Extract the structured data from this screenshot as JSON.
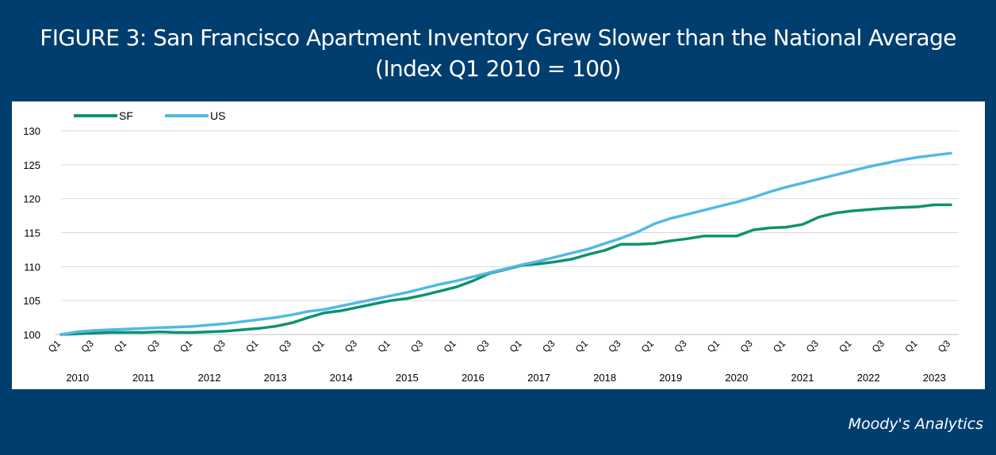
{
  "title": {
    "line1": "FIGURE 3: San Francisco Apartment Inventory Grew Slower than the National Average",
    "line2": "(Index Q1 2010 = 100)"
  },
  "source": "Moody's Analytics",
  "colors": {
    "background": "#003E70",
    "SF": "#0E9270",
    "US": "#53B8E4"
  },
  "chart_data": {
    "type": "line",
    "ylim": [
      100,
      130
    ],
    "yticks": [
      100,
      105,
      110,
      115,
      120,
      125,
      130
    ],
    "grid": true,
    "legend_position": "top-left",
    "quarter_labels": [
      "Q1",
      "Q3",
      "Q1",
      "Q3",
      "Q1",
      "Q3",
      "Q1",
      "Q3",
      "Q1",
      "Q3",
      "Q1",
      "Q3",
      "Q1",
      "Q3",
      "Q1",
      "Q3",
      "Q1",
      "Q3",
      "Q1",
      "Q3",
      "Q1",
      "Q3",
      "Q1",
      "Q3",
      "Q1",
      "Q3",
      "Q1",
      "Q3"
    ],
    "years": [
      "2010",
      "2011",
      "2012",
      "2013",
      "2014",
      "2015",
      "2016",
      "2017",
      "2018",
      "2019",
      "2020",
      "2021",
      "2022",
      "2023"
    ],
    "x": [
      "2010Q1",
      "2010Q2",
      "2010Q3",
      "2010Q4",
      "2011Q1",
      "2011Q2",
      "2011Q3",
      "2011Q4",
      "2012Q1",
      "2012Q2",
      "2012Q3",
      "2012Q4",
      "2013Q1",
      "2013Q2",
      "2013Q3",
      "2013Q4",
      "2014Q1",
      "2014Q2",
      "2014Q3",
      "2014Q4",
      "2015Q1",
      "2015Q2",
      "2015Q3",
      "2015Q4",
      "2016Q1",
      "2016Q2",
      "2016Q3",
      "2016Q4",
      "2017Q1",
      "2017Q2",
      "2017Q3",
      "2017Q4",
      "2018Q1",
      "2018Q2",
      "2018Q3",
      "2018Q4",
      "2019Q1",
      "2019Q2",
      "2019Q3",
      "2019Q4",
      "2020Q1",
      "2020Q2",
      "2020Q3",
      "2020Q4",
      "2021Q1",
      "2021Q2",
      "2021Q3",
      "2021Q4",
      "2022Q1",
      "2022Q2",
      "2022Q3",
      "2022Q4",
      "2023Q1",
      "2023Q2",
      "2023Q3"
    ],
    "series": [
      {
        "name": "SF",
        "values": [
          100.0,
          100.1,
          100.2,
          100.3,
          100.3,
          100.3,
          100.4,
          100.3,
          100.3,
          100.4,
          100.5,
          100.7,
          100.9,
          101.2,
          101.7,
          102.5,
          103.2,
          103.5,
          104.0,
          104.5,
          105.0,
          105.3,
          105.8,
          106.4,
          107.0,
          107.9,
          109.0,
          109.6,
          110.2,
          110.4,
          110.7,
          111.1,
          111.8,
          112.4,
          113.3,
          113.3,
          113.4,
          113.8,
          114.1,
          114.5,
          114.5,
          114.5,
          115.4,
          115.7,
          115.8,
          116.2,
          117.3,
          117.9,
          118.2,
          118.4,
          118.6,
          118.7,
          118.8,
          119.1,
          119.1
        ]
      },
      {
        "name": "US",
        "values": [
          100.0,
          100.4,
          100.6,
          100.7,
          100.8,
          100.9,
          101.0,
          101.1,
          101.2,
          101.4,
          101.6,
          101.9,
          102.2,
          102.5,
          102.9,
          103.4,
          103.7,
          104.2,
          104.7,
          105.2,
          105.7,
          106.2,
          106.8,
          107.4,
          107.9,
          108.5,
          109.1,
          109.7,
          110.3,
          110.8,
          111.4,
          112.0,
          112.6,
          113.4,
          114.2,
          115.1,
          116.3,
          117.1,
          117.7,
          118.3,
          118.9,
          119.5,
          120.2,
          121.0,
          121.7,
          122.3,
          122.9,
          123.5,
          124.1,
          124.7,
          125.2,
          125.7,
          126.1,
          126.4,
          126.7
        ]
      }
    ]
  }
}
